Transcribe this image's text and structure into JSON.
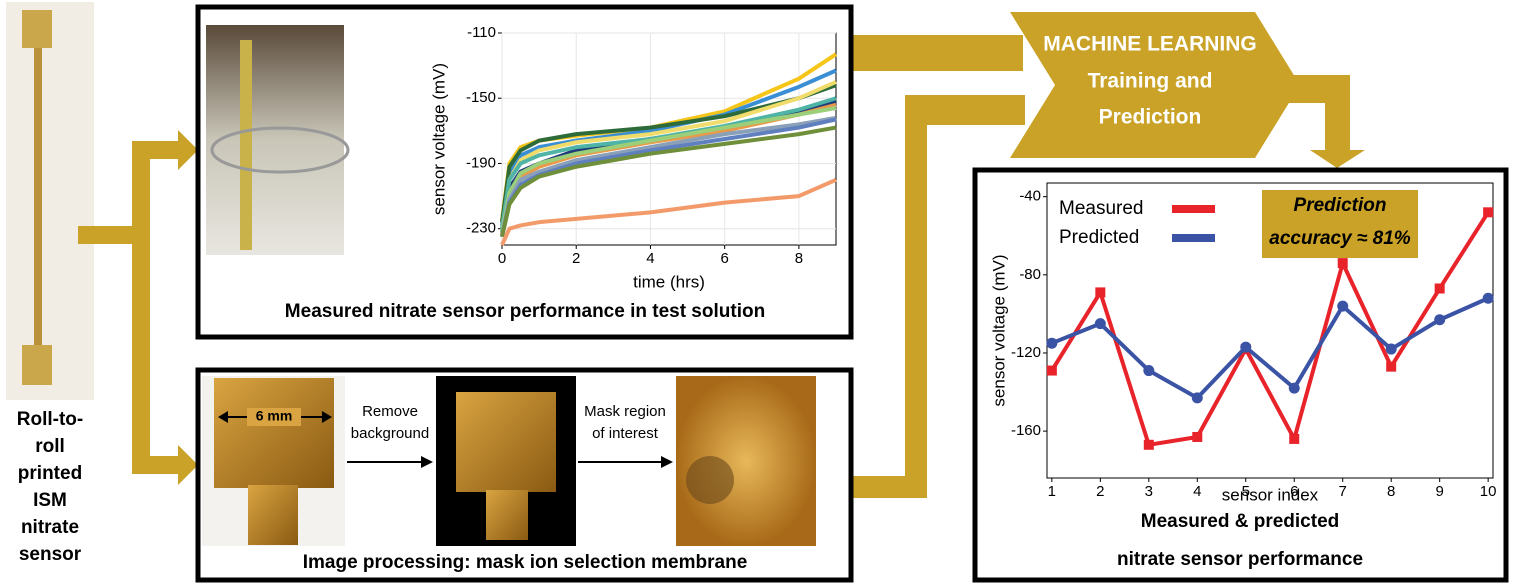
{
  "sensor_label": [
    "Roll-to-",
    "roll",
    "printed",
    "ISM",
    "nitrate",
    "sensor"
  ],
  "machine_learning": [
    "MACHINE LEARNING",
    "Training and",
    "Prediction"
  ],
  "image_processing": {
    "scale": "6 mm",
    "step_1": [
      "Remove",
      "background"
    ],
    "step_2": [
      "Mask region",
      "of interest"
    ],
    "caption": "Image processing: mask ion selection membrane"
  },
  "chart_data": [
    {
      "type": "line",
      "caption": "Measured nitrate sensor performance in test solution",
      "xlabel": "time (hrs)",
      "ylabel": "sensor voltage (mV)",
      "x": [
        0,
        0.2,
        0.5,
        1,
        2,
        4,
        6,
        8,
        9
      ],
      "xlim": [
        0,
        9
      ],
      "xticks": [
        0,
        2,
        4,
        6,
        8
      ],
      "ylim": [
        -240,
        -110
      ],
      "yticks": [
        -110,
        -150,
        -190,
        -230
      ],
      "grid": true,
      "series": [
        {
          "color": "#f5c518",
          "values": [
            -225,
            -190,
            -180,
            -176,
            -173,
            -168,
            -158,
            -138,
            -123
          ]
        },
        {
          "color": "#3a8fd4",
          "values": [
            -228,
            -195,
            -185,
            -180,
            -176,
            -170,
            -160,
            -143,
            -133
          ]
        },
        {
          "color": "#2e6b3a",
          "values": [
            -226,
            -192,
            -182,
            -176,
            -172,
            -168,
            -161,
            -150,
            -142
          ]
        },
        {
          "color": "#f0dc6a",
          "values": [
            -230,
            -200,
            -188,
            -182,
            -177,
            -172,
            -164,
            -150,
            -140
          ]
        },
        {
          "color": "#1f3d7a",
          "values": [
            -232,
            -205,
            -195,
            -190,
            -182,
            -175,
            -168,
            -158,
            -152
          ]
        },
        {
          "color": "#4fb3a5",
          "values": [
            -230,
            -200,
            -190,
            -185,
            -180,
            -175,
            -167,
            -157,
            -150
          ]
        },
        {
          "color": "#e89a4a",
          "values": [
            -233,
            -210,
            -198,
            -192,
            -185,
            -177,
            -170,
            -160,
            -154
          ]
        },
        {
          "color": "#9bcf7a",
          "values": [
            -232,
            -208,
            -196,
            -190,
            -184,
            -176,
            -168,
            -160,
            -156
          ]
        },
        {
          "color": "#8aa0b8",
          "values": [
            -234,
            -212,
            -200,
            -195,
            -188,
            -180,
            -172,
            -166,
            -162
          ]
        },
        {
          "color": "#5f7fbf",
          "values": [
            -235,
            -214,
            -203,
            -197,
            -190,
            -182,
            -175,
            -168,
            -163
          ]
        },
        {
          "color": "#6f8f3a",
          "values": [
            -235,
            -215,
            -205,
            -198,
            -192,
            -184,
            -178,
            -172,
            -168
          ]
        },
        {
          "color": "#f39a6b",
          "values": [
            -240,
            -230,
            -228,
            -226,
            -224,
            -220,
            -214,
            -210,
            -200
          ]
        }
      ]
    },
    {
      "type": "line",
      "caption": [
        "Measured & predicted",
        "nitrate sensor performance"
      ],
      "xlabel": "sensor index",
      "ylabel": "sensor voltage (mV)",
      "annotation": [
        "Prediction",
        "accuracy ≈ 81%"
      ],
      "x": [
        1,
        2,
        3,
        4,
        5,
        6,
        7,
        8,
        9,
        10
      ],
      "xlim": [
        0.9,
        10.1
      ],
      "xticks": [
        1,
        2,
        3,
        4,
        5,
        6,
        7,
        8,
        9,
        10
      ],
      "ylim": [
        -184,
        -33
      ],
      "yticks": [
        -40,
        -80,
        -120,
        -160
      ],
      "series": [
        {
          "name": "Measured",
          "color": "#e8232a",
          "marker": "square",
          "values": [
            -129,
            -89,
            -167,
            -163,
            -118,
            -164,
            -74,
            -127,
            -87,
            -48
          ]
        },
        {
          "name": "Predicted",
          "color": "#3a53a4",
          "marker": "circle",
          "values": [
            -115,
            -105,
            -129,
            -143,
            -117,
            -138,
            -96,
            -118,
            -103,
            -92
          ]
        }
      ]
    }
  ]
}
